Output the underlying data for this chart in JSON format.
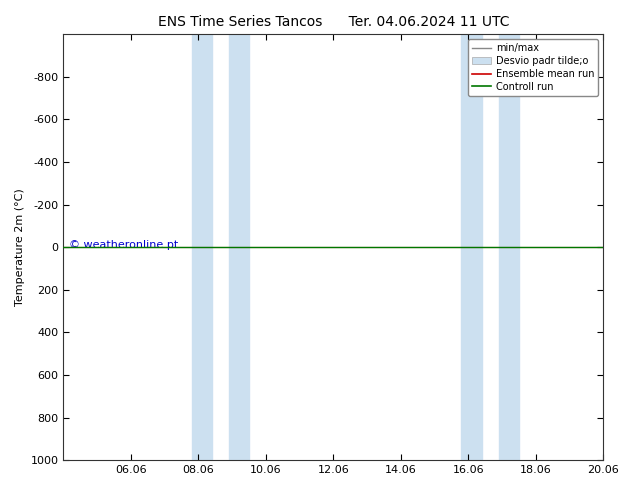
{
  "title_left": "ENS Time Series Tancos",
  "title_right": "Ter. 04.06.2024 11 UTC",
  "ylabel": "Temperature 2m (°C)",
  "ylim": [
    -1000,
    1000
  ],
  "yticks": [
    -800,
    -600,
    -400,
    -200,
    0,
    200,
    400,
    600,
    800,
    1000
  ],
  "xlim": [
    0,
    16
  ],
  "xtick_labels": [
    "06.06",
    "08.06",
    "10.06",
    "12.06",
    "14.06",
    "16.06",
    "18.06",
    "20.06"
  ],
  "xtick_positions": [
    2,
    4,
    6,
    8,
    10,
    12,
    14,
    16
  ],
  "background_color": "#ffffff",
  "plot_bg_color": "#ffffff",
  "shaded_bands": [
    {
      "x_start": 3.8,
      "x_end": 4.4,
      "color": "#cce0f0"
    },
    {
      "x_start": 4.9,
      "x_end": 5.5,
      "color": "#cce0f0"
    },
    {
      "x_start": 11.8,
      "x_end": 12.4,
      "color": "#cce0f0"
    },
    {
      "x_start": 12.9,
      "x_end": 13.5,
      "color": "#cce0f0"
    }
  ],
  "control_run_y": 0,
  "control_run_color": "#007700",
  "ensemble_mean_color": "#cc0000",
  "minmax_color": "#888888",
  "desvio_color": "#cce0f0",
  "watermark": "© weatheronline.pt",
  "watermark_color": "#0000cc",
  "watermark_fontsize": 8,
  "legend_items": [
    "min/max",
    "Desvio padr tilde;o",
    "Ensemble mean run",
    "Controll run"
  ],
  "title_fontsize": 10,
  "axis_label_fontsize": 8,
  "tick_fontsize": 8,
  "legend_fontsize": 7
}
